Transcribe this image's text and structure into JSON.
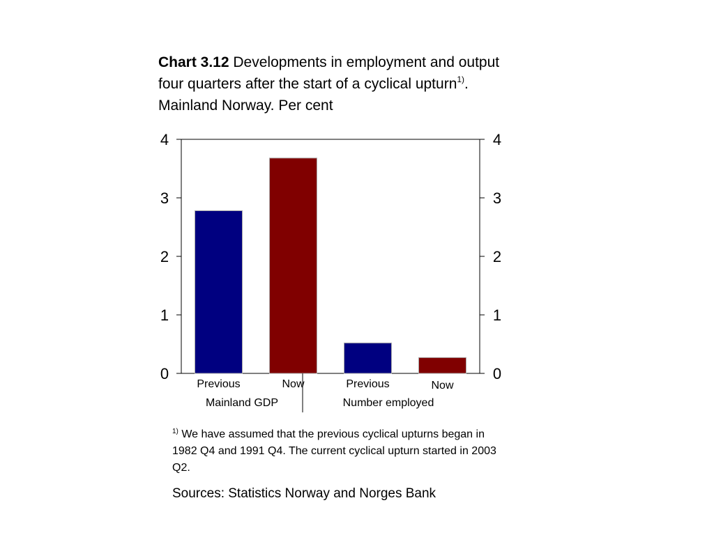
{
  "title": {
    "bold": "Chart 3.12",
    "line1": "Developments in employment and output",
    "line2": "four quarters after the start of a cyclical upturn",
    "line2_sup": "1)",
    "line2_end": ".",
    "line3": "Mainland Norway. Per cent"
  },
  "chart_data": {
    "type": "bar",
    "ylim": [
      0,
      4
    ],
    "yticks": [
      "0",
      "1",
      "2",
      "3",
      "4"
    ],
    "grid": false,
    "bars": [
      {
        "label": "Previous",
        "group": "Mainland GDP",
        "value": 2.78,
        "color": "#000080"
      },
      {
        "label": "Now",
        "group": "Mainland GDP",
        "value": 3.68,
        "color": "#800000"
      },
      {
        "label": "Previous",
        "group": "Number employed",
        "value": 0.52,
        "color": "#000080"
      },
      {
        "label": "Now",
        "group": "Number employed",
        "value": 0.27,
        "color": "#800000"
      }
    ],
    "groups": [
      "Mainland GDP",
      "Number employed"
    ]
  },
  "footnote": {
    "sup": "1)",
    "text": " We have assumed that the previous cyclical upturns began in 1982 Q4 and 1991 Q4. The current cyclical upturn started in 2003 Q2."
  },
  "sources": "Sources: Statistics Norway and Norges Bank"
}
